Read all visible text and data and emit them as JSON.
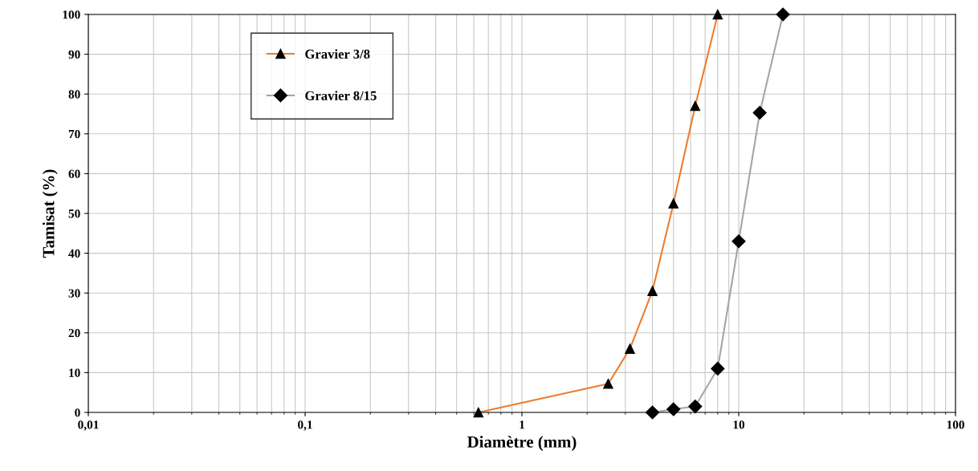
{
  "chart_data": {
    "type": "line",
    "xlabel": "Diamètre (mm)",
    "ylabel": "Tamisat (%)",
    "log": "x",
    "xlim": [
      0.01,
      100
    ],
    "xticks": [
      {
        "value": 0.01,
        "label": "0,01"
      },
      {
        "value": 0.1,
        "label": "0,1"
      },
      1,
      10,
      100
    ],
    "ylim": [
      0,
      100
    ],
    "yticks": [
      0,
      10,
      20,
      30,
      40,
      50,
      60,
      70,
      80,
      90,
      100
    ],
    "grid": true,
    "legend": "top left",
    "series": [
      {
        "name": "Gravier 3/8",
        "color": "#ed7d31",
        "marker": "triangle",
        "x": [
          0.63,
          2.5,
          3.15,
          4,
          5,
          6.3,
          8
        ],
        "values": [
          0,
          7.2,
          16,
          30.5,
          52.5,
          77,
          100
        ]
      },
      {
        "name": "Gravier 8/15",
        "color": "#a5a5a5",
        "marker": "diamond",
        "x": [
          4,
          5,
          6.3,
          8,
          10,
          12.5,
          16
        ],
        "values": [
          0,
          0.8,
          1.5,
          11,
          43,
          75.3,
          100
        ]
      }
    ]
  }
}
